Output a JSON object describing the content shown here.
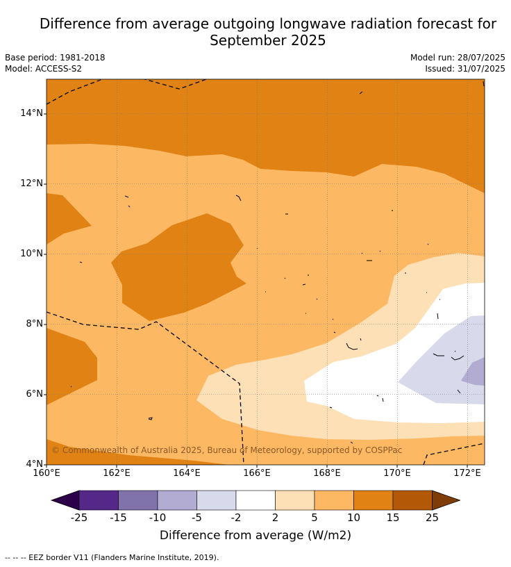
{
  "title_line1": "Difference from average outgoing longwave radiation forecast for",
  "title_line2": "September 2025",
  "base_period": "Base period: 1981-2018",
  "model": "Model: ACCESS-S2",
  "model_run": "Model run: 28/07/2025",
  "issued": "Issued: 31/07/2025",
  "copyright": "© Commonwealth of Australia 2025, Bureau of Meteorology, supported by COSPPac",
  "footnote": "--  --  -- EEZ border V11 (Flanders Marine Institute, 2019).",
  "map": {
    "lon_range": [
      160,
      172.5
    ],
    "lat_range": [
      4,
      15
    ],
    "lat_ticks": [
      "4°N",
      "6°N",
      "8°N",
      "10°N",
      "12°N",
      "14°N"
    ],
    "lon_ticks": [
      "160°E",
      "162°E",
      "164°E",
      "166°E",
      "168°E",
      "170°E",
      "172°E"
    ]
  },
  "colorbar": {
    "title": "Difference from average (W/m2)",
    "labels": [
      "-25",
      "-15",
      "-10",
      "-5",
      "-2",
      "2",
      "5",
      "10",
      "15",
      "25"
    ],
    "colors": [
      "#2d004b",
      "#542788",
      "#8073ac",
      "#b2abd2",
      "#d8daeb",
      "#ffffff",
      "#fee0b6",
      "#fdb863",
      "#e08214",
      "#b35806",
      "#7f3b08"
    ]
  }
}
